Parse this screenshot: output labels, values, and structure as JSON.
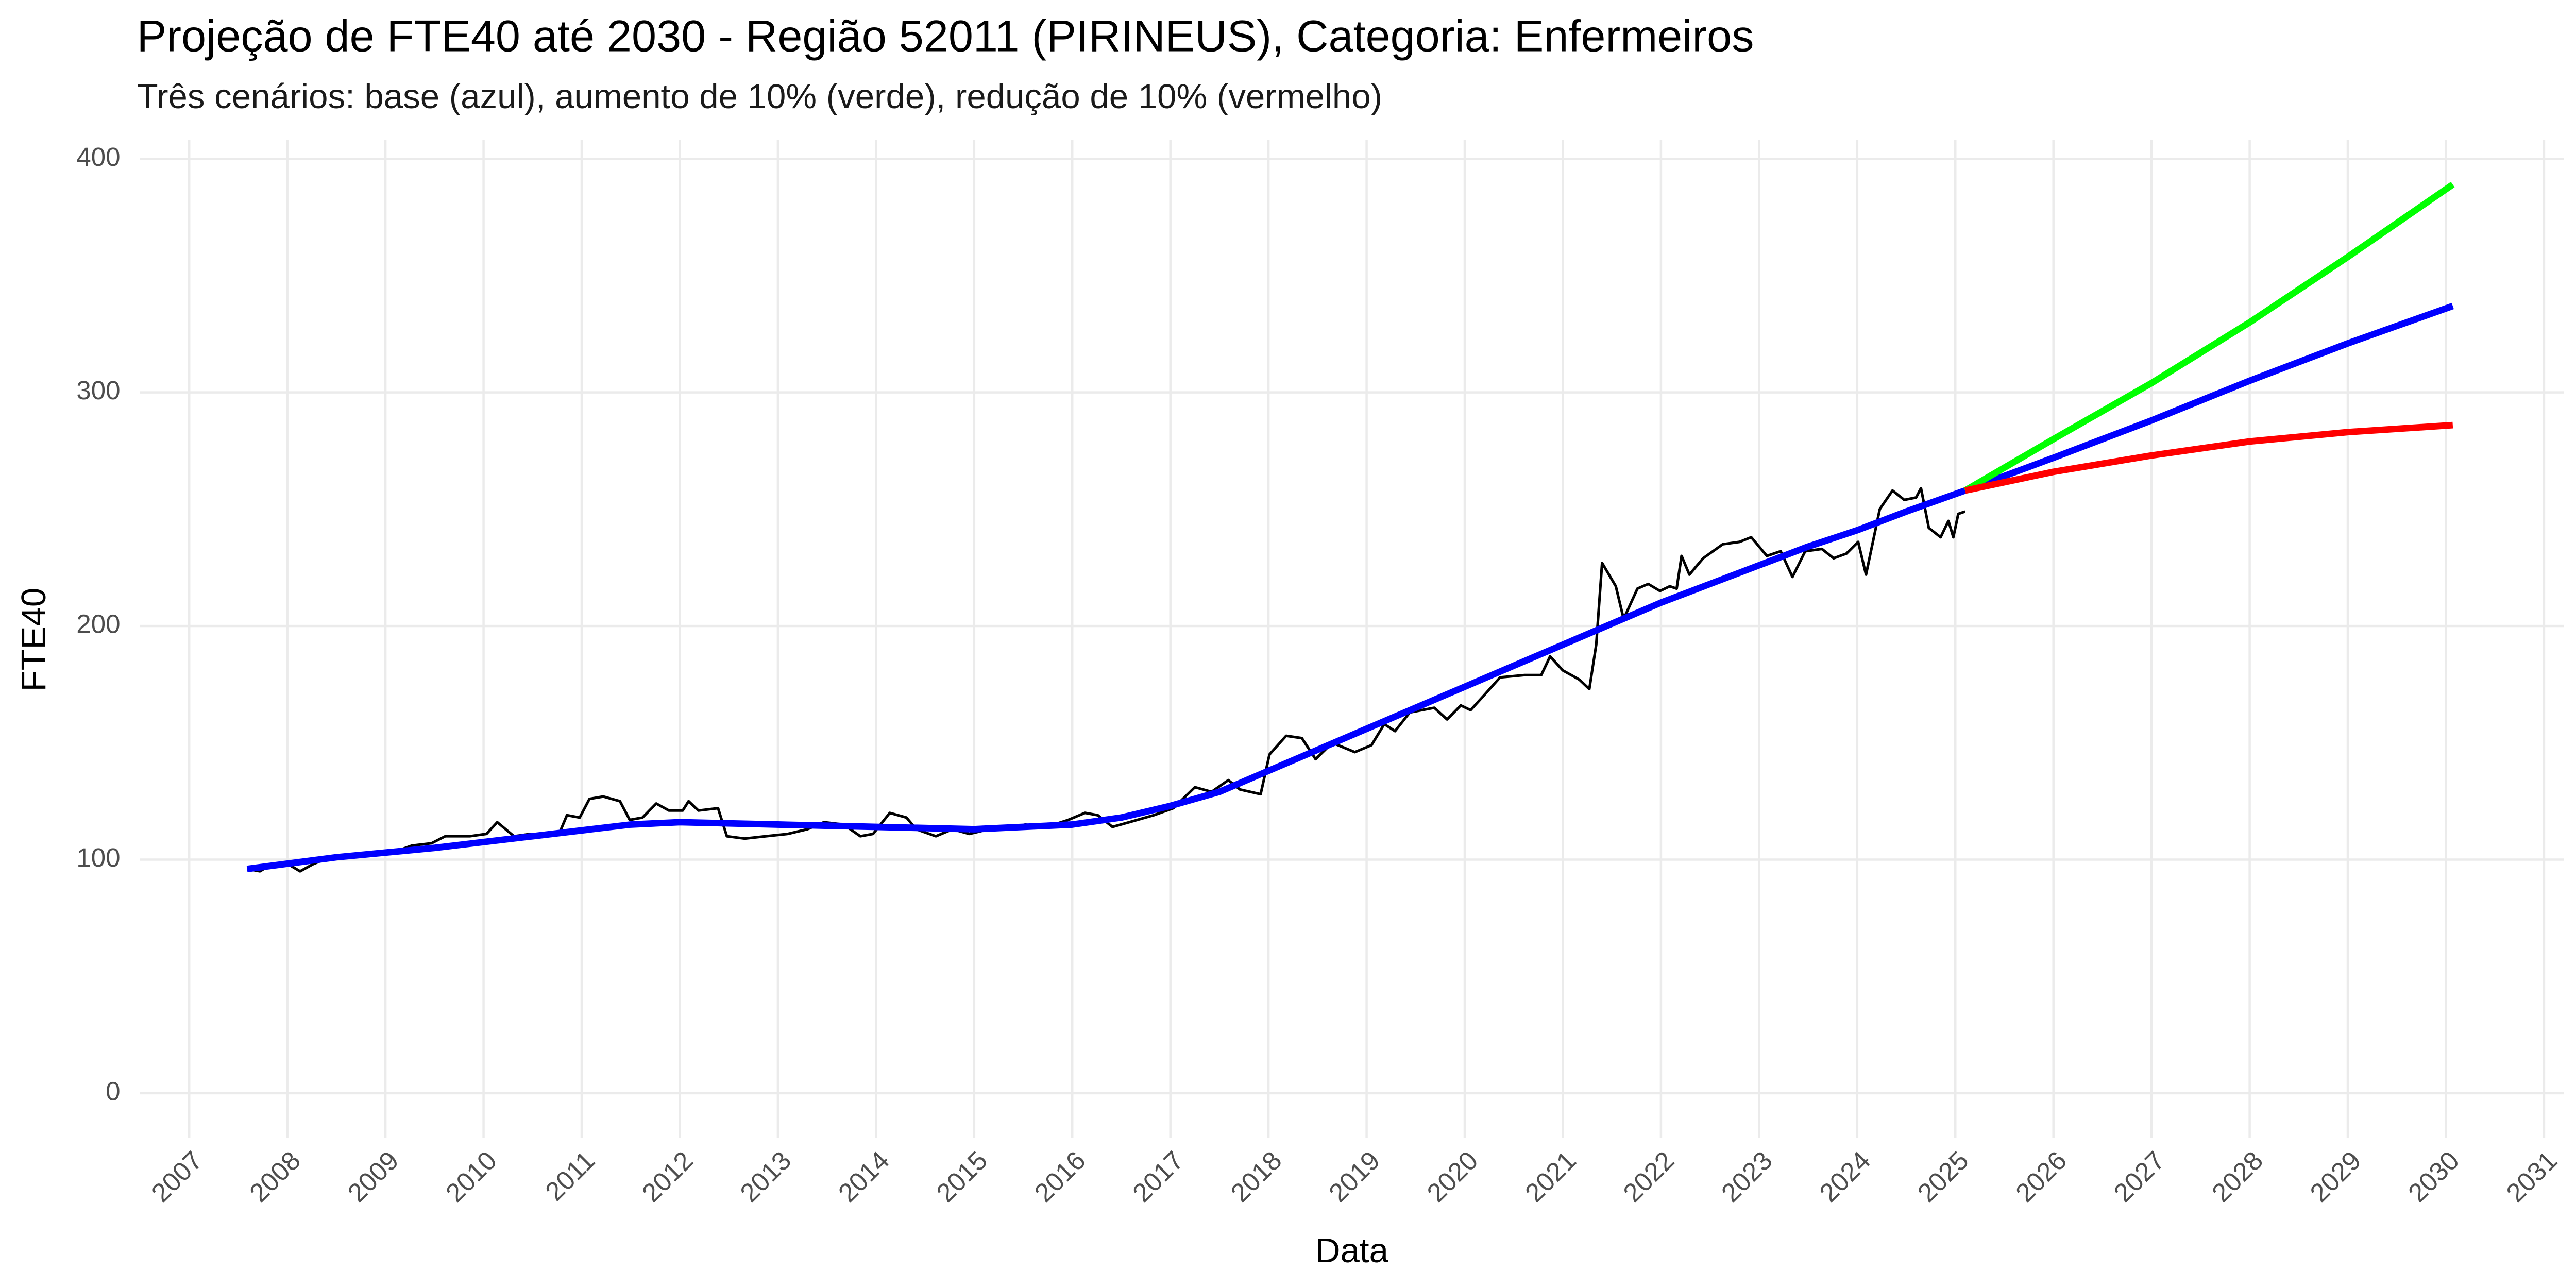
{
  "chart_data": {
    "type": "line",
    "title": "Projeção de FTE40 até 2030 - Região 52011 (PIRINEUS), Categoria: Enfermeiros",
    "subtitle": "Três cenários: base (azul), aumento de 10% (verde), redução de 10% (vermelho)",
    "x_label": "Data",
    "y_label": "FTE40",
    "xlim": [
      2006.5,
      2031.2
    ],
    "ylim": [
      -19,
      408
    ],
    "xticks": [
      2007,
      2008,
      2009,
      2010,
      2011,
      2012,
      2013,
      2014,
      2015,
      2016,
      2017,
      2018,
      2019,
      2020,
      2021,
      2022,
      2023,
      2024,
      2025,
      2026,
      2027,
      2028,
      2029,
      2030,
      2031
    ],
    "yticks": [
      0,
      100,
      200,
      300,
      400
    ],
    "grid": true,
    "series": [
      {
        "color": "#000000",
        "width": 1.6,
        "x": [
          2007.59,
          2007.72,
          2007.84,
          2008.01,
          2008.13,
          2008.26,
          2008.43,
          2008.68,
          2008.85,
          2009.07,
          2009.27,
          2009.47,
          2009.61,
          2009.86,
          2010.03,
          2010.14,
          2010.31,
          2010.48,
          2010.65,
          2010.78,
          2010.85,
          2010.98,
          2011.08,
          2011.22,
          2011.39,
          2011.49,
          2011.62,
          2011.76,
          2011.89,
          2012.03,
          2012.09,
          2012.19,
          2012.39,
          2012.48,
          2012.66,
          2012.88,
          2013.1,
          2013.3,
          2013.47,
          2013.67,
          2013.84,
          2013.97,
          2014.14,
          2014.31,
          2014.41,
          2014.61,
          2014.78,
          2014.95,
          2015.15,
          2015.35,
          2015.52,
          2015.74,
          2015.96,
          2016.13,
          2016.26,
          2016.41,
          2016.58,
          2016.83,
          2017.03,
          2017.25,
          2017.42,
          2017.59,
          2017.71,
          2017.92,
          2018.01,
          2018.18,
          2018.34,
          2018.48,
          2018.65,
          2018.88,
          2019.05,
          2019.18,
          2019.29,
          2019.44,
          2019.69,
          2019.82,
          2019.96,
          2020.06,
          2020.19,
          2020.36,
          2020.61,
          2020.78,
          2020.87,
          2021.0,
          2021.17,
          2021.27,
          2021.34,
          2021.4,
          2021.54,
          2021.62,
          2021.76,
          2021.87,
          2021.99,
          2022.09,
          2022.16,
          2022.21,
          2022.29,
          2022.43,
          2022.63,
          2022.8,
          2022.92,
          2023.08,
          2023.22,
          2023.34,
          2023.47,
          2023.64,
          2023.76,
          2023.89,
          2024.01,
          2024.09,
          2024.23,
          2024.36,
          2024.48,
          2024.6,
          2024.65,
          2024.73,
          2024.85,
          2024.93,
          2024.98,
          2025.03,
          2025.1
        ],
        "values": [
          96,
          95,
          98,
          98,
          95,
          98,
          101,
          101,
          103,
          103,
          106,
          107,
          110,
          110,
          111,
          116,
          110,
          111,
          111,
          112,
          119,
          118,
          126,
          127,
          125,
          117,
          118,
          124,
          121,
          121,
          125,
          121,
          122,
          110,
          109,
          110,
          111,
          113,
          116,
          115,
          110,
          111,
          120,
          118,
          113,
          110,
          113,
          111,
          113,
          113,
          115,
          114,
          117,
          120,
          119,
          114,
          116,
          119,
          122,
          131,
          129,
          134,
          130,
          128,
          145,
          153,
          152,
          143,
          150,
          146,
          149,
          158,
          155,
          163,
          165,
          160,
          166,
          164,
          170,
          178,
          179,
          179,
          187,
          181,
          177,
          173,
          192,
          227,
          217,
          203,
          216,
          218,
          215,
          217,
          216,
          230,
          222,
          229,
          235,
          236,
          238,
          230,
          232,
          221,
          232,
          233,
          229,
          231,
          236,
          222,
          250,
          258,
          254,
          255,
          259,
          242,
          238,
          245,
          238,
          248,
          249
        ]
      },
      {
        "color": "#0000ff",
        "width": 4,
        "x": [
          2007.59,
          2008.5,
          2009.5,
          2010.5,
          2011.5,
          2012,
          2013,
          2014,
          2015,
          2016,
          2016.5,
          2017,
          2017.5,
          2018,
          2018.5,
          2019,
          2019.5,
          2020,
          2020.5,
          2021,
          2021.5,
          2022,
          2022.5,
          2023,
          2023.5,
          2024,
          2024.5,
          2025.1,
          2026,
          2027,
          2028,
          2029,
          2030.07
        ],
        "values": [
          96,
          101,
          105,
          110,
          115,
          116,
          115,
          114,
          113,
          115,
          118,
          123,
          129,
          138,
          147,
          156,
          165,
          174,
          183,
          192,
          201,
          210,
          218,
          226,
          234,
          241,
          249,
          258,
          272,
          288,
          305,
          321,
          337
        ]
      },
      {
        "color": "#00ff00",
        "width": 4,
        "x": [
          2025.1,
          2026,
          2027,
          2028,
          2029,
          2030.07
        ],
        "values": [
          258,
          280,
          304,
          330,
          358,
          389
        ]
      },
      {
        "color": "#ff0000",
        "width": 4,
        "x": [
          2025.1,
          2026,
          2027,
          2028,
          2029,
          2030.07
        ],
        "values": [
          258,
          266,
          273,
          279,
          283,
          286
        ]
      }
    ]
  }
}
